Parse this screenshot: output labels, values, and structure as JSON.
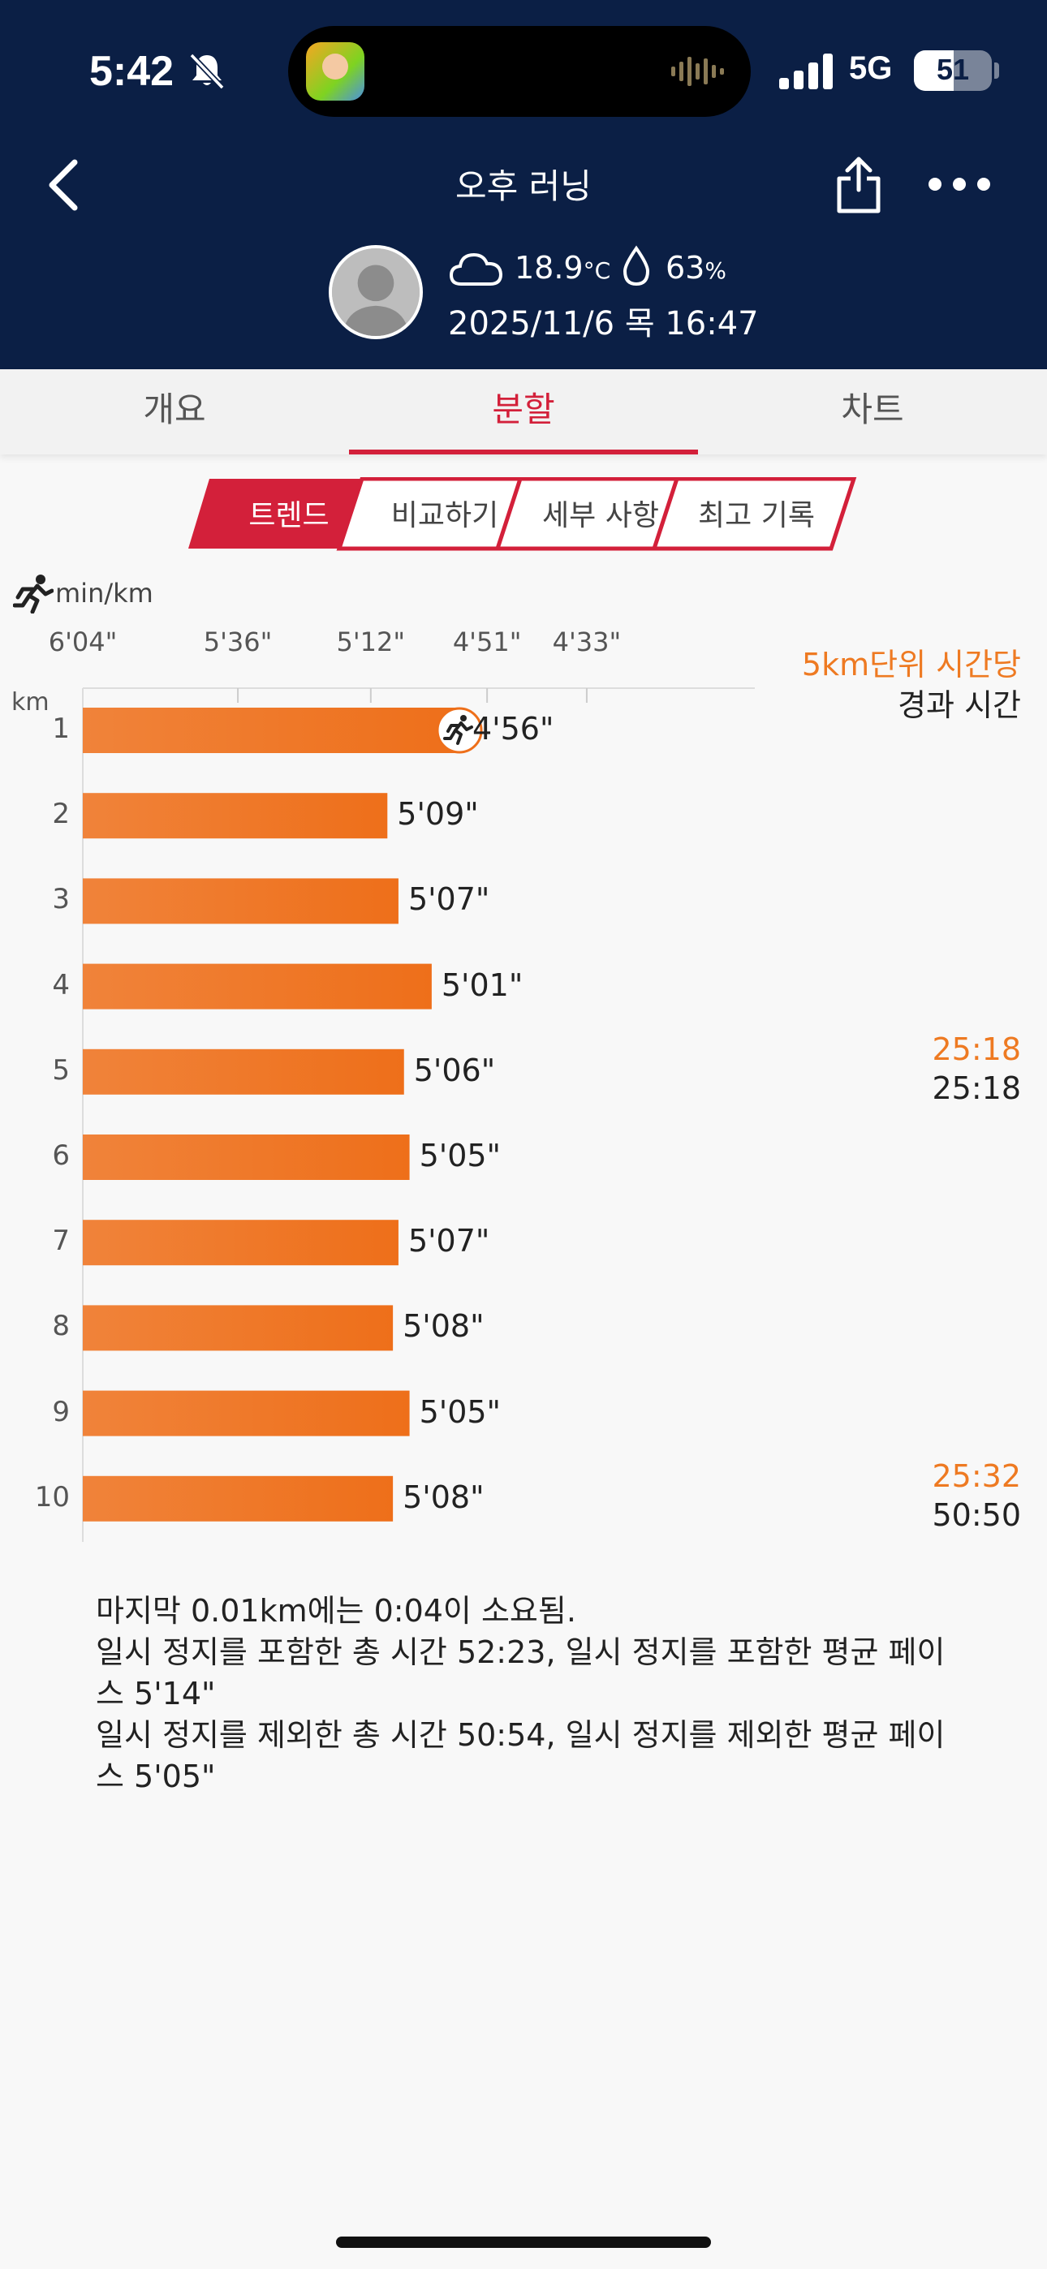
{
  "status_bar": {
    "time": "5:42",
    "network": "5G",
    "battery": "51",
    "battery_level": 0.51
  },
  "header": {
    "title": "오후 러닝",
    "temperature": "18.9",
    "temperature_unit": "°C",
    "humidity": "63",
    "humidity_unit": "%",
    "datetime": "2025/11/6 목 16:47"
  },
  "tabs": [
    {
      "label": "개요",
      "active": false
    },
    {
      "label": "분할",
      "active": true
    },
    {
      "label": "차트",
      "active": false
    }
  ],
  "segments": [
    {
      "label": "트렌드",
      "active": true
    },
    {
      "label": "비교하기",
      "active": false
    },
    {
      "label": "세부 사항",
      "active": false
    },
    {
      "label": "최고 기록",
      "active": false
    }
  ],
  "chart_labels": {
    "pace_unit": "min/km",
    "km_unit": "km",
    "right_header_line1": "5km단위 시간당",
    "right_header_line2": "경과 시간"
  },
  "chart_data": {
    "type": "bar",
    "orientation": "horizontal",
    "x_axis_ticks": [
      "6'04\"",
      "5'36\"",
      "5'12\"",
      "4'51\"",
      "4'33\""
    ],
    "x_axis_tick_seconds": [
      364,
      336,
      312,
      291,
      273
    ],
    "categories": [
      "1",
      "2",
      "3",
      "4",
      "5",
      "6",
      "7",
      "8",
      "9",
      "10"
    ],
    "values_label": [
      "4'56\"",
      "5'09\"",
      "5'07\"",
      "5'01\"",
      "5'06\"",
      "5'05\"",
      "5'07\"",
      "5'08\"",
      "5'05\"",
      "5'08\""
    ],
    "values_seconds": [
      296,
      309,
      307,
      301,
      306,
      305,
      307,
      308,
      305,
      308
    ],
    "fastest_index": 0,
    "bar_color": "#ee7a22",
    "splits": [
      {
        "after_km": "5",
        "split_time": "25:18",
        "elapsed_time": "25:18"
      },
      {
        "after_km": "10",
        "split_time": "25:32",
        "elapsed_time": "50:50"
      }
    ]
  },
  "notes": [
    "마지막 0.01km에는 0:04이 소요됨.",
    "일시 정지를 포함한 총 시간 52:23, 일시 정지를 포함한 평균 페이스 5'14\"",
    "일시 정지를 제외한 총 시간 50:54, 일시 정지를 제외한 평균 페이스 5'05\""
  ],
  "colors": {
    "header_bg": "#0b1f45",
    "accent_red": "#d3203a",
    "bar_orange": "#ee7a22"
  }
}
